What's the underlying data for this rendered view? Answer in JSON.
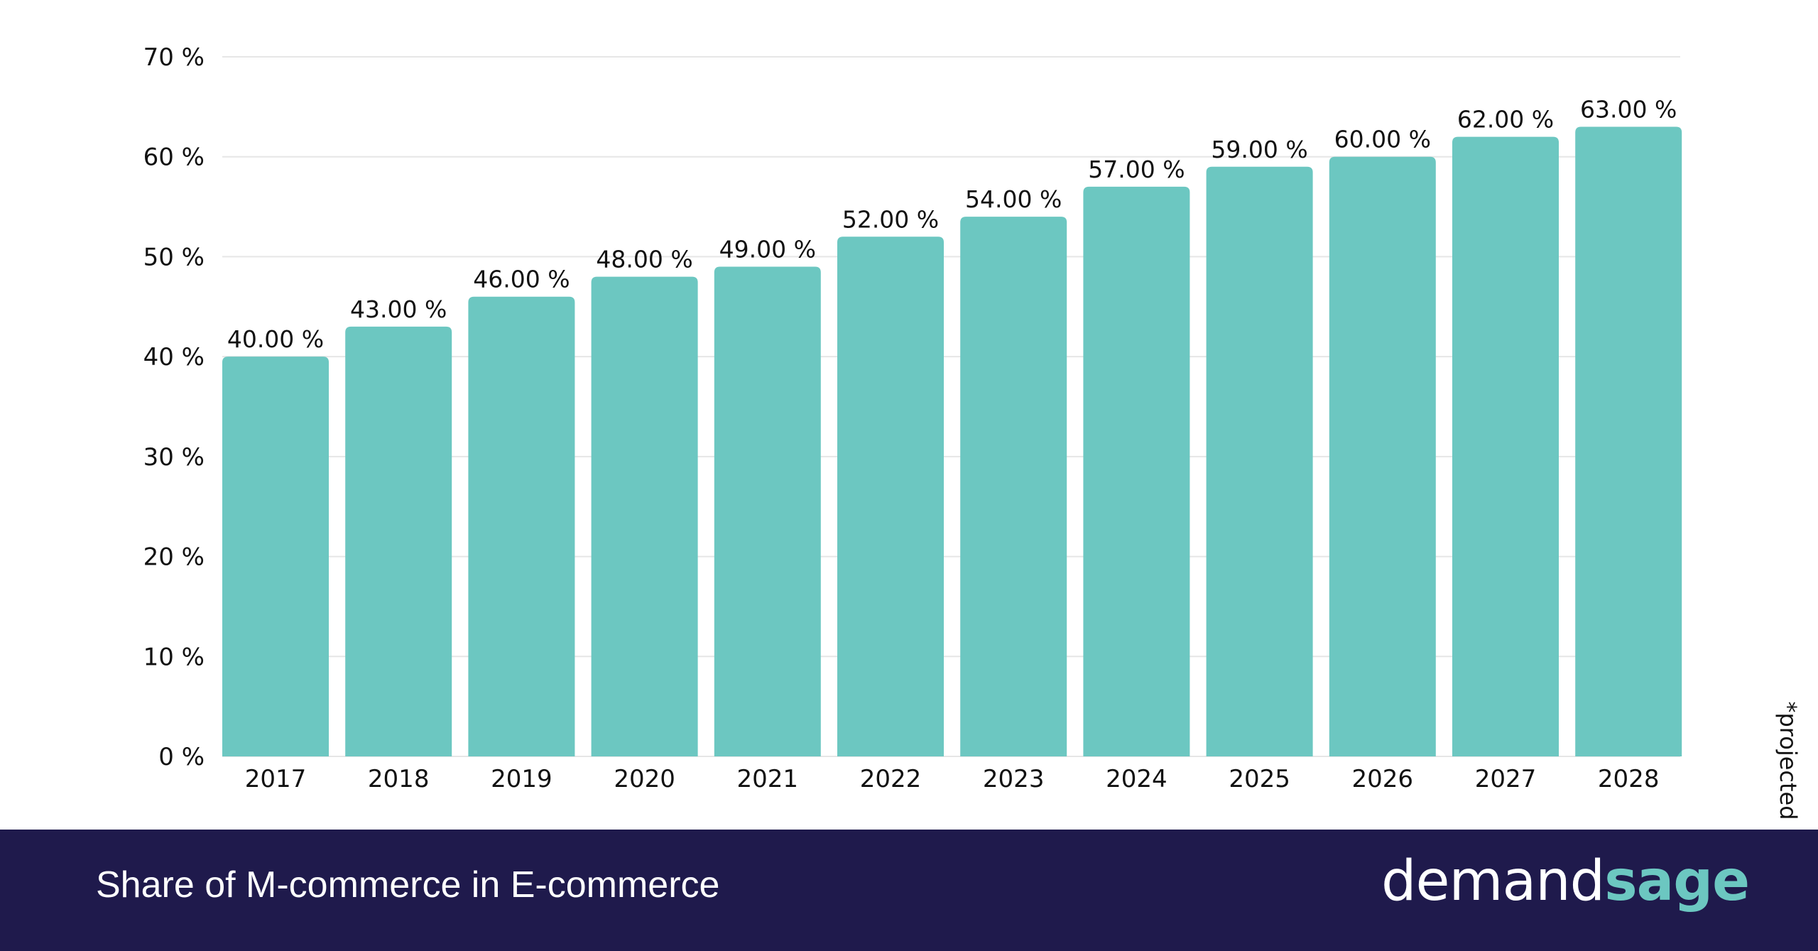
{
  "chart_data": {
    "type": "bar",
    "categories": [
      "2017",
      "2018",
      "2019",
      "2020",
      "2021",
      "2022",
      "2023",
      "2024",
      "2025",
      "2026",
      "2027",
      "2028"
    ],
    "values": [
      40,
      43,
      46,
      48,
      49,
      52,
      54,
      57,
      59,
      60,
      62,
      63
    ],
    "data_labels": [
      "40.00 %",
      "43.00 %",
      "46.00 %",
      "48.00 %",
      "49.00 %",
      "52.00 %",
      "54.00 %",
      "57.00 %",
      "59.00 %",
      "60.00 %",
      "62.00 %",
      "63.00 %"
    ],
    "yticks": [
      "0 %",
      "10 %",
      "20 %",
      "30 %",
      "40 %",
      "50 %",
      "60 %",
      "70 %"
    ],
    "ylim": [
      0,
      70
    ],
    "grid": true,
    "title": "Share of M-commerce in E-commerce",
    "xlabel": "",
    "ylabel": "",
    "annotation": "*projected",
    "bar_color": "#6cc7c1"
  },
  "footer": {
    "title": "Share of M-commerce in E-commerce",
    "logo_part1": "demand",
    "logo_part2": "sage",
    "background": "#1f1a4c"
  }
}
